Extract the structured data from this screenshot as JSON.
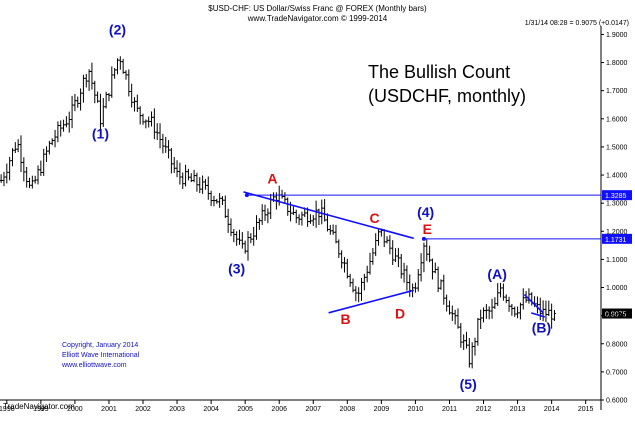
{
  "header": {
    "title": "$USD-CHF:  US Dollar/Swiss Franc @ FOREX  (Monthly bars)",
    "subtitle": "www.TradeNavigator.com © 1999-2014",
    "quote": "1/31/14 08:28 = 0.9075 (+0.0147)"
  },
  "annotation": {
    "line1": "The Bullish Count",
    "line2": "(USDCHF, monthly)"
  },
  "credit": {
    "line1": "Copyright, January 2014",
    "line2": "Elliott Wave International",
    "line3": "www.elliottwave.com"
  },
  "footer": "TradeNavigator.com",
  "colors": {
    "bars": "#000000",
    "wave_labels": "#1010c0",
    "corrective_labels": "#dd1111",
    "trendlines": "#1010ff",
    "price_tag_bg": "#1010ff",
    "last_tag_bg": "#000000"
  },
  "chart_data": {
    "type": "bar",
    "title": "$USD-CHF:  US Dollar/Swiss Franc @ FOREX  (Monthly bars)",
    "x_range": [
      1997.8,
      2015.45
    ],
    "ylim": [
      0.6,
      1.93
    ],
    "y_ticks": [
      "1.9000",
      "1.8000",
      "1.7000",
      "1.6000",
      "1.5000",
      "1.4000",
      "1.3000",
      "1.2000",
      "1.1000",
      "1.0000",
      "0.9000",
      "0.8000",
      "0.7000",
      "0.6000"
    ],
    "x_ticks": [
      "1998",
      "1999",
      "2000",
      "2001",
      "2002",
      "2003",
      "2004",
      "2005",
      "2006",
      "2007",
      "2008",
      "2009",
      "2010",
      "2011",
      "2012",
      "2013",
      "2014",
      "2015"
    ],
    "path_points": [
      [
        1997.83,
        1.38
      ],
      [
        1998.3,
        1.52
      ],
      [
        1998.7,
        1.34
      ],
      [
        1999.3,
        1.52
      ],
      [
        1999.9,
        1.62
      ],
      [
        2000.4,
        1.78
      ],
      [
        2000.75,
        1.6
      ],
      [
        2001.3,
        1.83
      ],
      [
        2001.8,
        1.63
      ],
      [
        2002.3,
        1.58
      ],
      [
        2003.0,
        1.4
      ],
      [
        2003.6,
        1.37
      ],
      [
        2004.3,
        1.3
      ],
      [
        2004.9,
        1.13
      ],
      [
        2005.4,
        1.23
      ],
      [
        2005.9,
        1.33
      ],
      [
        2006.5,
        1.25
      ],
      [
        2007.2,
        1.27
      ],
      [
        2007.8,
        1.12
      ],
      [
        2008.0,
        1.06
      ],
      [
        2008.3,
        0.97
      ],
      [
        2008.8,
        1.14
      ],
      [
        2008.95,
        1.2
      ],
      [
        2009.3,
        1.13
      ],
      [
        2009.8,
        1.01
      ],
      [
        2009.95,
        0.99
      ],
      [
        2010.25,
        1.16
      ],
      [
        2010.6,
        1.04
      ],
      [
        2011.0,
        0.93
      ],
      [
        2011.6,
        0.74
      ],
      [
        2011.9,
        0.9
      ],
      [
        2012.3,
        0.92
      ],
      [
        2012.5,
        1.0
      ],
      [
        2012.9,
        0.92
      ],
      [
        2013.3,
        0.96
      ],
      [
        2013.7,
        0.91
      ],
      [
        2014.08,
        0.9075
      ]
    ],
    "last_value": 0.9075,
    "horizontal_levels": [
      {
        "value": 1.3285,
        "label": "1.3285",
        "from_x": 2005.05
      },
      {
        "value": 1.1731,
        "label": "1.1731",
        "from_x": 2010.25
      }
    ],
    "trendlines": [
      {
        "from": [
          2004.95,
          1.34
        ],
        "to": [
          2009.95,
          1.175
        ]
      },
      {
        "from": [
          2007.45,
          0.91
        ],
        "to": [
          2009.95,
          0.99
        ]
      },
      {
        "from": [
          2013.2,
          0.975
        ],
        "to": [
          2013.75,
          0.91
        ]
      },
      {
        "from": [
          2013.4,
          0.91
        ],
        "to": [
          2013.8,
          0.895
        ]
      }
    ],
    "wave_labels": [
      {
        "text": "(2)",
        "x": 2001.25,
        "y": 1.9,
        "color": "blue"
      },
      {
        "text": "(1)",
        "x": 2000.75,
        "y": 1.53,
        "color": "blue"
      },
      {
        "text": "(3)",
        "x": 2004.75,
        "y": 1.05,
        "color": "blue"
      },
      {
        "text": "(4)",
        "x": 2010.3,
        "y": 1.25,
        "color": "blue"
      },
      {
        "text": "(5)",
        "x": 2011.55,
        "y": 0.64,
        "color": "blue"
      },
      {
        "text": "(A)",
        "x": 2012.4,
        "y": 1.03,
        "color": "blue"
      },
      {
        "text": "(B)",
        "x": 2013.7,
        "y": 0.84,
        "color": "blue"
      },
      {
        "text": "A",
        "x": 2005.8,
        "y": 1.37,
        "color": "red"
      },
      {
        "text": "C",
        "x": 2008.8,
        "y": 1.23,
        "color": "red"
      },
      {
        "text": "E",
        "x": 2010.35,
        "y": 1.19,
        "color": "red"
      },
      {
        "text": "B",
        "x": 2007.95,
        "y": 0.87,
        "color": "red"
      },
      {
        "text": "D",
        "x": 2009.55,
        "y": 0.89,
        "color": "red"
      }
    ]
  }
}
